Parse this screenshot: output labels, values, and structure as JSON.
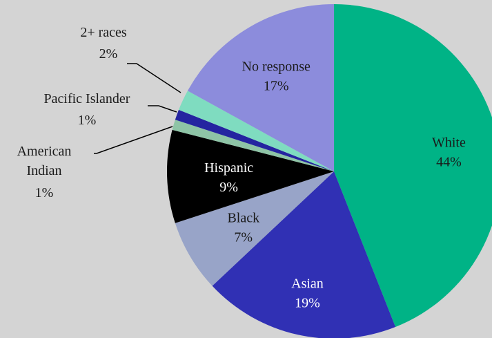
{
  "chart_data": {
    "type": "pie",
    "title": "",
    "slices": [
      {
        "category": "White",
        "value": 44,
        "label": "White",
        "pct": "44%",
        "color": "#00b386",
        "text_color": "#1a1a1a",
        "outside": false
      },
      {
        "category": "Asian",
        "value": 19,
        "label": "Asian",
        "pct": "19%",
        "color": "#3030b4",
        "text_color": "#ffffff",
        "outside": false
      },
      {
        "category": "Black",
        "value": 7,
        "label": "Black",
        "pct": "7%",
        "color": "#98a4c8",
        "text_color": "#1a1a1a",
        "outside": false
      },
      {
        "category": "Hispanic",
        "value": 9,
        "label": "Hispanic",
        "pct": "9%",
        "color": "#000000",
        "text_color": "#ffffff",
        "outside": false
      },
      {
        "category": "American Indian",
        "value": 1,
        "label_lines": [
          "American",
          "Indian"
        ],
        "pct": "1%",
        "color": "#8ec4a6",
        "text_color": "#1a1a1a",
        "outside": true
      },
      {
        "category": "Pacific Islander",
        "value": 1,
        "label_lines": [
          "Pacific Islander"
        ],
        "pct": "1%",
        "color": "#2424a0",
        "text_color": "#1a1a1a",
        "outside": true
      },
      {
        "category": "2+ races",
        "value": 2,
        "label_lines": [
          "2+ races"
        ],
        "pct": "2%",
        "color": "#7fdcc0",
        "text_color": "#1a1a1a",
        "outside": true
      },
      {
        "category": "No response",
        "value": 17,
        "label": "No response",
        "pct": "17%",
        "color": "#8c8cdc",
        "text_color": "#1a1a1a",
        "outside": false
      }
    ],
    "start_angle_deg": 0,
    "direction": "clockwise",
    "legend": "none",
    "background": "#d4d4d4"
  }
}
